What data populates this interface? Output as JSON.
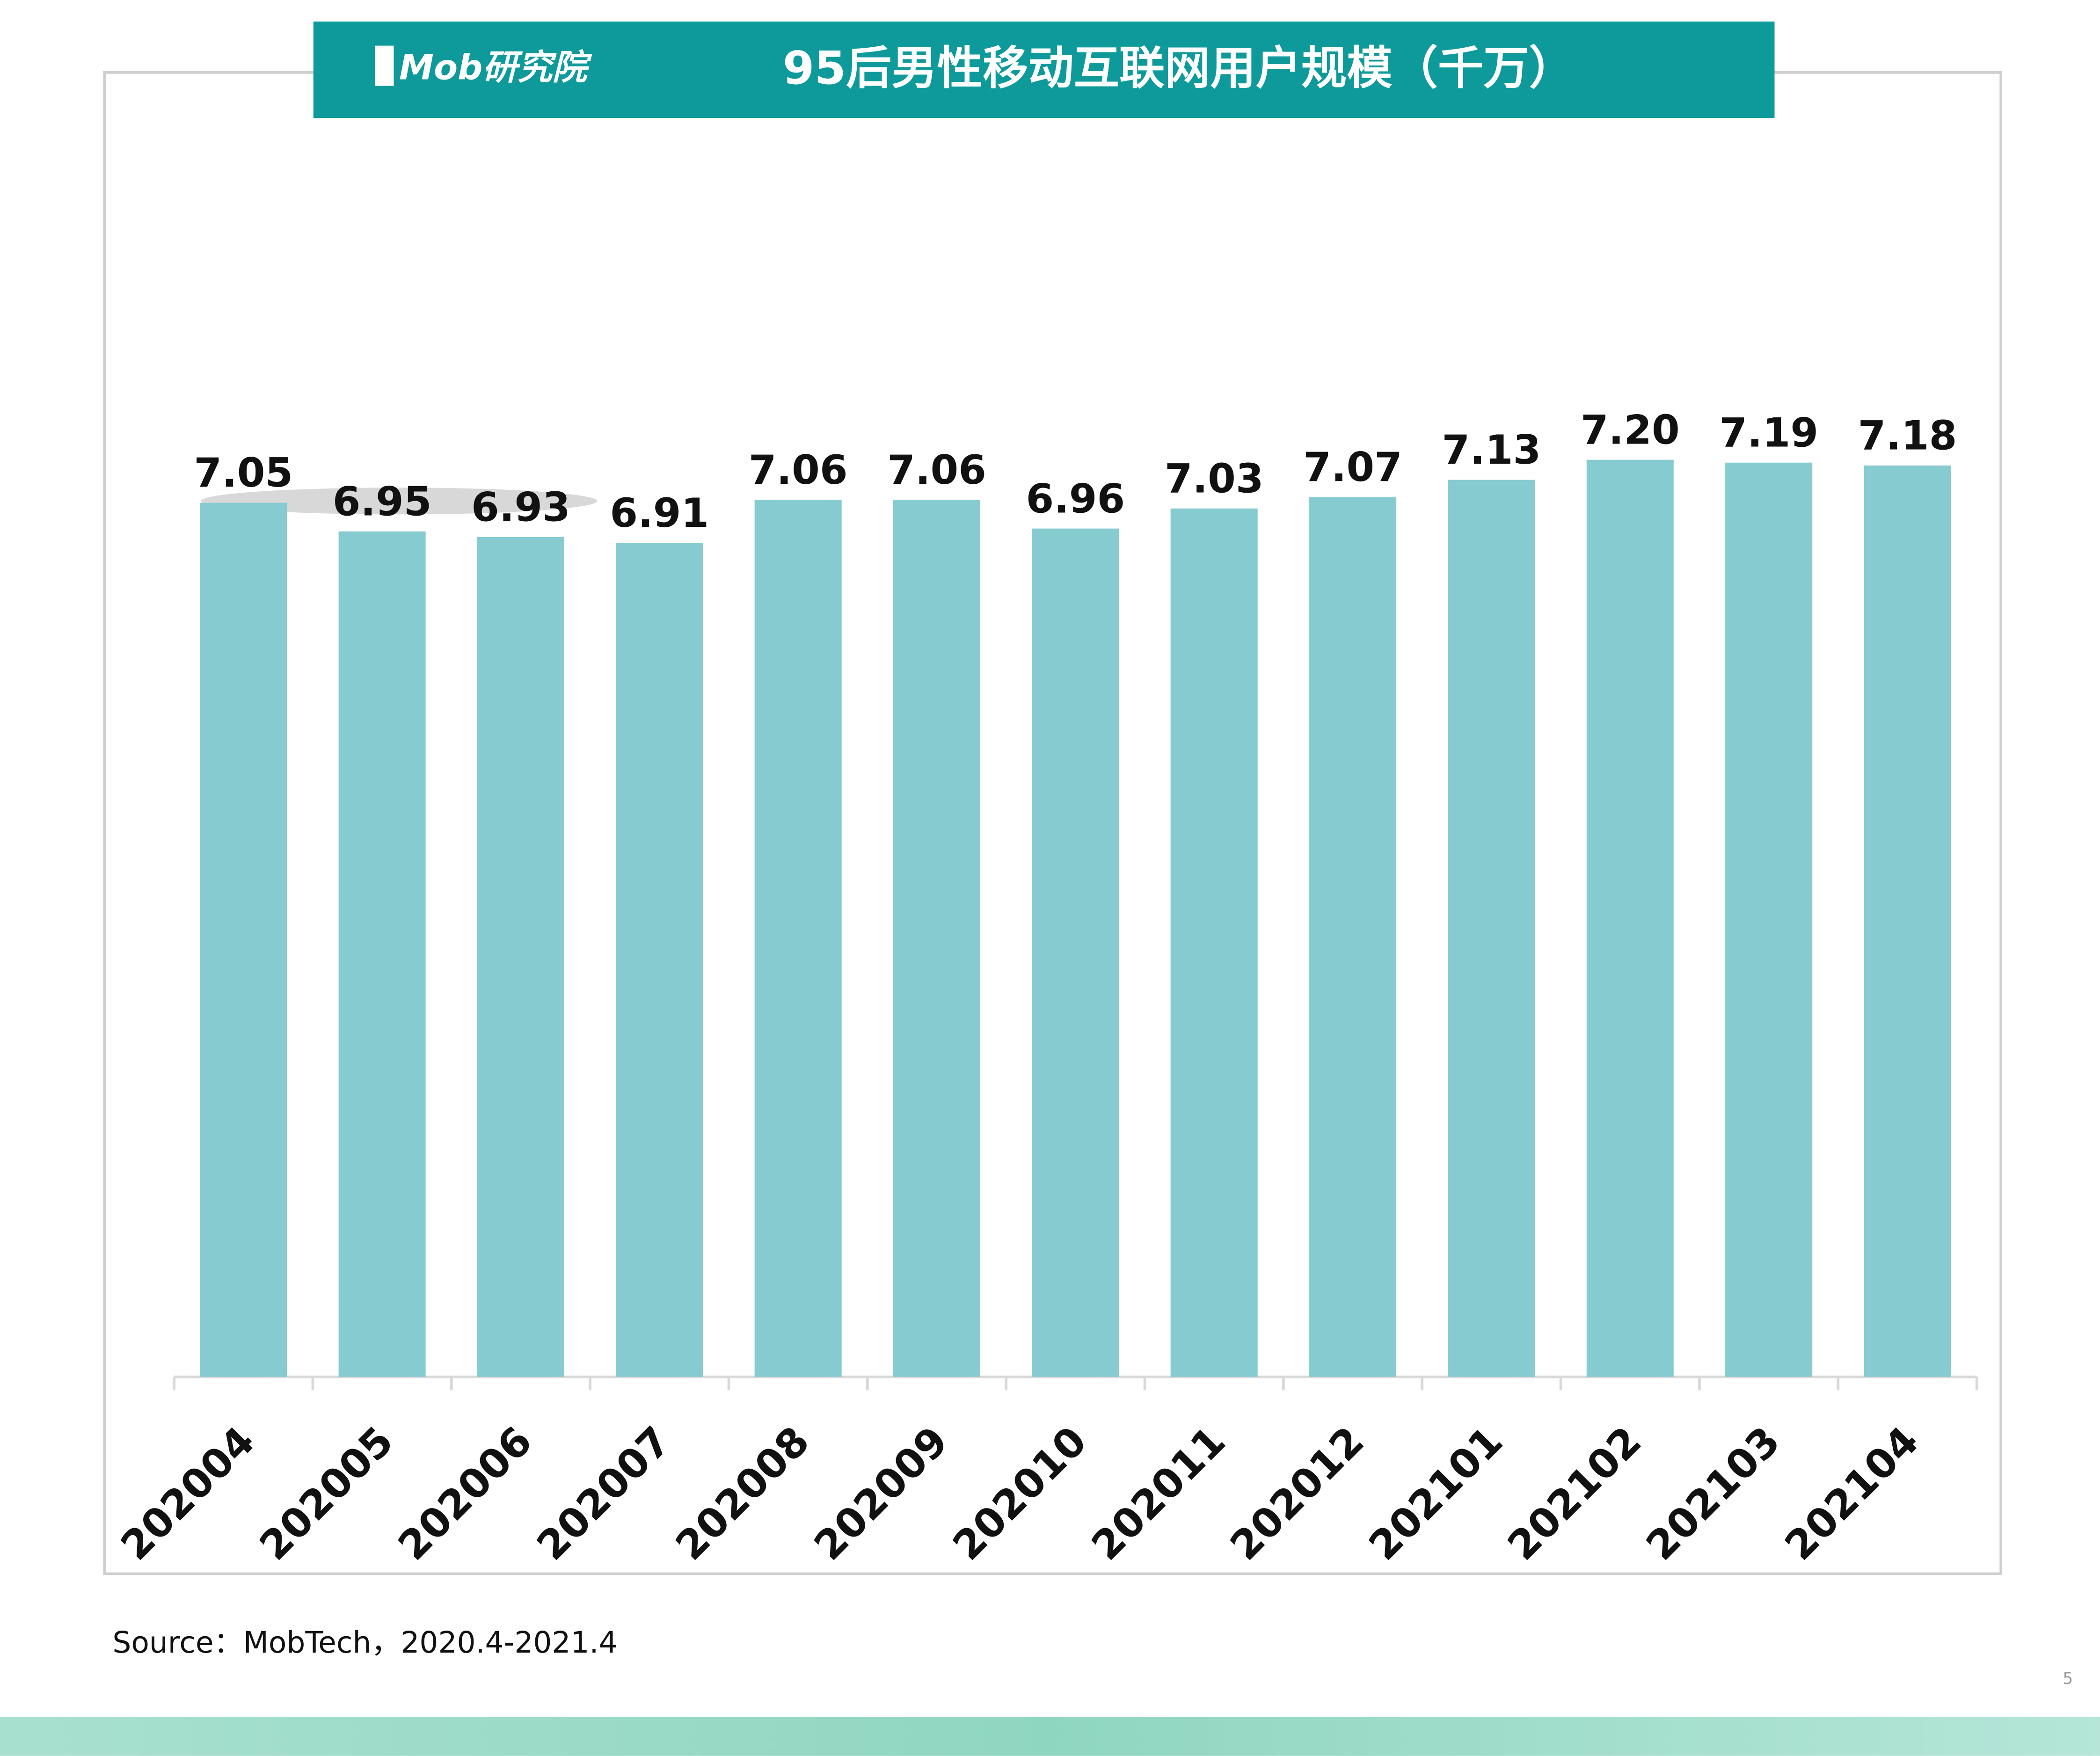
{
  "logo": "Mob研究院",
  "chart_data": {
    "type": "bar",
    "title": "95后男性移动互联网用户规模（千万）",
    "categories": [
      "202004",
      "202005",
      "202006",
      "202007",
      "202008",
      "202009",
      "202010",
      "202011",
      "202012",
      "202101",
      "202102",
      "202103",
      "202104"
    ],
    "values": [
      7.05,
      6.95,
      6.93,
      6.91,
      7.06,
      7.06,
      6.96,
      7.03,
      7.07,
      7.13,
      7.2,
      7.19,
      7.18
    ],
    "value_labels": [
      "7.05",
      "6.95",
      "6.93",
      "6.91",
      "7.06",
      "7.06",
      "6.96",
      "7.03",
      "7.07",
      "7.13",
      "7.20",
      "7.19",
      "7.18"
    ],
    "color": "#86cbd0",
    "ylim": [
      4,
      7.5
    ],
    "grid": false
  },
  "footer": {
    "source": "Source：MobTech，2020.4-2021.4",
    "page_number": "5"
  }
}
